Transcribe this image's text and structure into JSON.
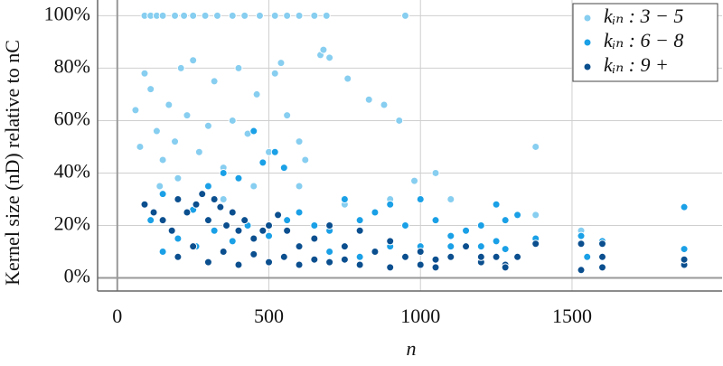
{
  "chart_data": {
    "type": "scatter",
    "x_label": "n",
    "y_label": "Kernel size (nD) relative to nC",
    "xlim": [
      -65,
      1995
    ],
    "ylim": [
      -5,
      106
    ],
    "xticks": [
      0,
      500,
      1000,
      1500
    ],
    "yticks": [
      {
        "value": 0,
        "label": "0%"
      },
      {
        "value": 20,
        "label": "20%"
      },
      {
        "value": 40,
        "label": "40%"
      },
      {
        "value": 60,
        "label": "60%"
      },
      {
        "value": 80,
        "label": "80%"
      },
      {
        "value": 100,
        "label": "100%"
      }
    ],
    "grid": true,
    "legend": "upper right",
    "series": [
      {
        "name": "kᵢₙ : 3 − 5",
        "color": "#87cef0",
        "x": [
          90,
          110,
          130,
          150,
          190,
          220,
          250,
          290,
          330,
          380,
          420,
          470,
          520,
          560,
          600,
          650,
          690,
          950,
          60,
          75,
          90,
          110,
          130,
          150,
          170,
          190,
          210,
          230,
          250,
          270,
          300,
          320,
          350,
          380,
          400,
          430,
          460,
          500,
          520,
          540,
          560,
          600,
          620,
          670,
          680,
          700,
          760,
          830,
          880,
          930,
          980,
          1050,
          1100,
          1380,
          1380,
          140,
          200,
          350,
          450,
          600,
          750,
          900,
          1530
        ],
        "values": [
          100,
          100,
          100,
          100,
          100,
          100,
          100,
          100,
          100,
          100,
          100,
          100,
          100,
          100,
          100,
          100,
          100,
          100,
          64,
          50,
          78,
          72,
          56,
          45,
          66,
          52,
          80,
          62,
          83,
          48,
          58,
          75,
          42,
          60,
          80,
          55,
          70,
          48,
          78,
          82,
          62,
          52,
          45,
          85,
          87,
          84,
          76,
          68,
          66,
          60,
          37,
          40,
          30,
          50,
          24,
          35,
          38,
          30,
          35,
          35,
          28,
          30,
          18
        ]
      },
      {
        "name": "kᵢₙ : 6 − 8",
        "color": "#1aa0e6",
        "x": [
          110,
          150,
          200,
          250,
          300,
          350,
          400,
          450,
          480,
          520,
          550,
          200,
          260,
          320,
          380,
          430,
          500,
          560,
          600,
          650,
          700,
          750,
          800,
          850,
          900,
          950,
          1000,
          1050,
          1100,
          1150,
          1200,
          1250,
          1280,
          1320,
          1000,
          1100,
          1250,
          1280,
          1530,
          1600,
          1870,
          1870,
          1380,
          700,
          800,
          900,
          1200,
          150,
          1550
        ],
        "values": [
          22,
          32,
          30,
          26,
          35,
          40,
          38,
          56,
          44,
          48,
          42,
          15,
          12,
          18,
          14,
          20,
          16,
          22,
          25,
          20,
          18,
          30,
          22,
          25,
          28,
          20,
          30,
          22,
          16,
          18,
          20,
          28,
          22,
          24,
          12,
          12,
          14,
          11,
          16,
          14,
          27,
          11,
          15,
          10,
          8,
          12,
          12,
          10,
          8
        ]
      },
      {
        "name": "kᵢₙ : 9 +",
        "color": "#0b4f8f",
        "x": [
          90,
          120,
          150,
          180,
          200,
          230,
          260,
          280,
          300,
          320,
          340,
          360,
          380,
          400,
          420,
          450,
          480,
          500,
          530,
          560,
          600,
          650,
          700,
          750,
          800,
          850,
          900,
          950,
          1000,
          1050,
          1100,
          1150,
          1200,
          1250,
          1280,
          1320,
          1380,
          1530,
          1530,
          1600,
          1600,
          1600,
          1870,
          1870,
          200,
          300,
          400,
          500,
          600,
          700,
          800,
          900,
          250,
          350,
          450,
          550,
          650,
          750,
          1050,
          1000,
          1200,
          1280
        ],
        "values": [
          28,
          25,
          22,
          18,
          30,
          25,
          28,
          32,
          22,
          30,
          27,
          20,
          25,
          18,
          22,
          15,
          18,
          20,
          24,
          18,
          12,
          15,
          20,
          12,
          18,
          10,
          14,
          8,
          10,
          7,
          8,
          12,
          6,
          8,
          5,
          8,
          13,
          3,
          13,
          4,
          8,
          13,
          5,
          7,
          8,
          6,
          5,
          6,
          5,
          6,
          5,
          4,
          12,
          10,
          9,
          8,
          7,
          7,
          4,
          5,
          8,
          4
        ]
      }
    ]
  }
}
